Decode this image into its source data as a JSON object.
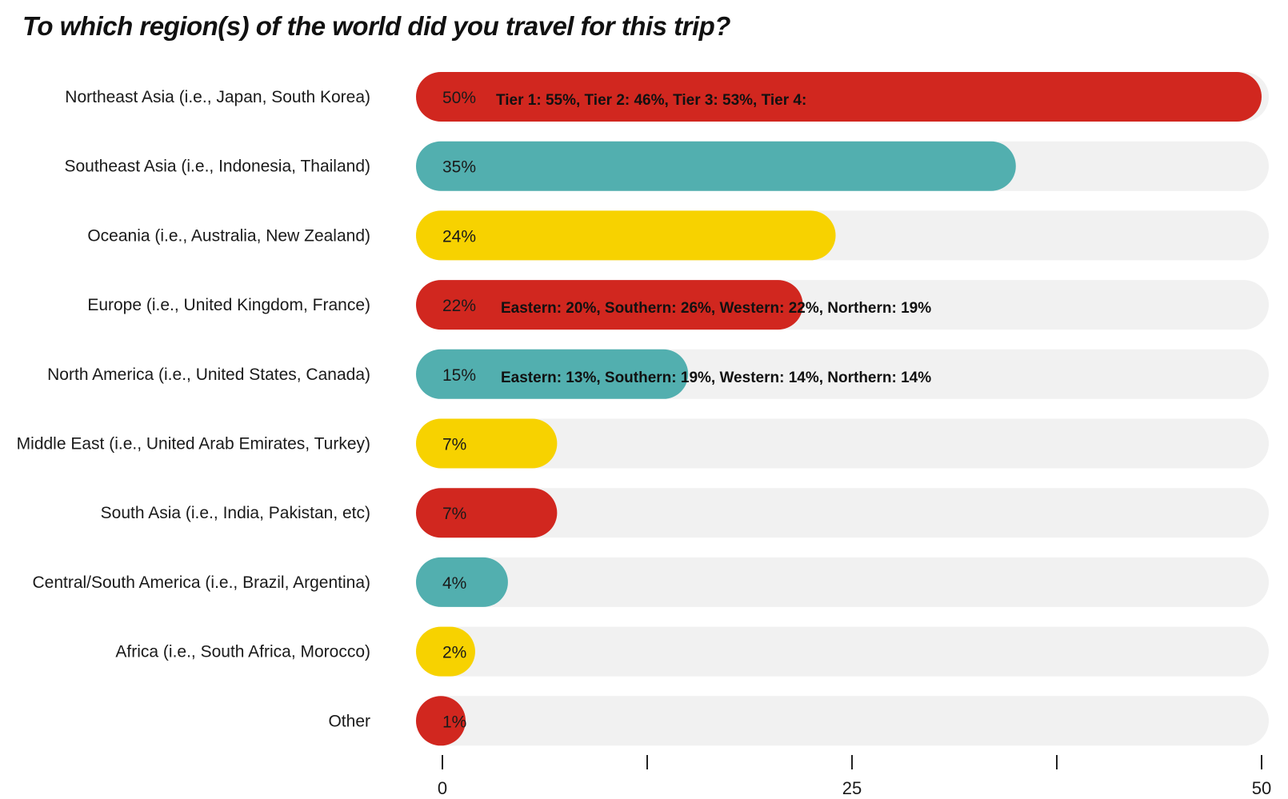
{
  "chart_data": {
    "type": "bar",
    "orientation": "horizontal",
    "title": "To which region(s) of the world did you travel for this trip?",
    "xlabel": "",
    "ylabel": "",
    "xlim": [
      0,
      50
    ],
    "x_ticks": [
      0,
      12.5,
      25,
      37.5,
      50
    ],
    "x_tick_labels": [
      "0",
      "",
      "25",
      "",
      "50"
    ],
    "categories": [
      "Northeast Asia (i.e., Japan, South Korea)",
      "Southeast Asia (i.e., Indonesia, Thailand)",
      "Oceania (i.e., Australia, New Zealand)",
      "Europe (i.e., United Kingdom, France)",
      "North America (i.e., United States, Canada)",
      "Middle East (i.e., United Arab Emirates, Turkey)",
      "South Asia (i.e., India, Pakistan, etc)",
      "Central/South America (i.e., Brazil, Argentina)",
      "Africa (i.e., South Africa, Morocco)",
      "Other"
    ],
    "values": [
      50,
      35,
      24,
      22,
      15,
      7,
      7,
      4,
      2,
      1
    ],
    "value_labels": [
      "50%",
      "35%",
      "24%",
      "22%",
      "15%",
      "7%",
      "7%",
      "4%",
      "2%",
      "1%"
    ],
    "annotations": [
      "Tier 1: 55%, Tier 2: 46%, Tier 3: 53%, Tier 4:",
      "",
      "",
      "Eastern: 20%, Southern: 26%, Western: 22%, Northern: 19%",
      "Eastern: 13%, Southern: 19%, Western: 14%, Northern: 14%",
      "",
      "",
      "",
      "",
      ""
    ],
    "bar_colors": [
      "#d1271f",
      "#52afaf",
      "#f7d200",
      "#d1271f",
      "#52afaf",
      "#f7d200",
      "#d1271f",
      "#52afaf",
      "#f7d200",
      "#d1271f"
    ],
    "track_color": "#f1f1f1",
    "grid": false,
    "legend": "none"
  }
}
